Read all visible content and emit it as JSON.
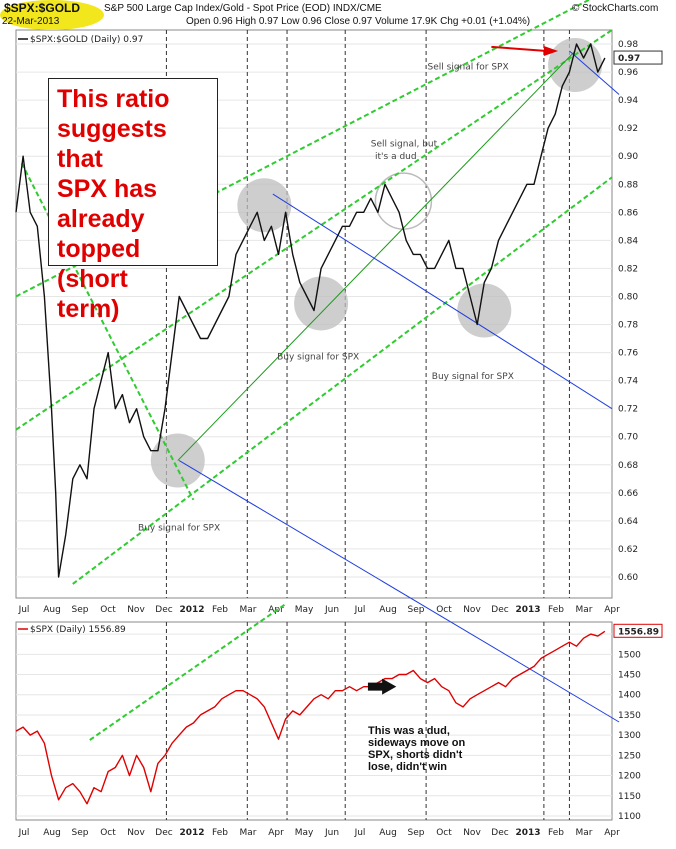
{
  "header": {
    "symbol": "$SPX:$GOLD",
    "date": "22-Mar-2013",
    "description": "S&P 500 Large Cap Index/Gold - Spot Price (EOD)  INDX/CME",
    "brand": "© StockCharts.com",
    "ohlc": "Open 0.96  High 0.97  Low 0.96  Close 0.97  Volume 17.9K  Chg +0.01 (+1.04%)"
  },
  "callout_lines": [
    "This ratio",
    "suggests that",
    "SPX has",
    "already",
    "topped (short",
    "term)"
  ],
  "annotations": {
    "sell1": "Sell signal for SPX",
    "sell_top": "Sell signal for SPX",
    "sell_dud_1": "Sell signal, but",
    "sell_dud_2": "it's a dud",
    "buy1": "Buy signal for SPX",
    "buy2": "Buy signal for SPX",
    "buy3": "Buy signal for SPX",
    "dud_note": "This was a dud, sideways move on SPX, shorts didn't lose, didn't win"
  },
  "colors": {
    "ratio_line": "#111111",
    "spx_line": "#e00000",
    "trend_blue": "#1f3fe0",
    "channel_green": "#2ecc2e",
    "signal_circle": "#bdbdbd",
    "arrow_red": "#e00000",
    "badge": "#f2e71d"
  },
  "chart_data": [
    {
      "type": "line",
      "title": "$SPX:$GOLD (Daily) 0.97",
      "series": [
        {
          "name": "$SPX:$GOLD (Daily) 0.97",
          "points": [
            [
              0,
              0.86
            ],
            [
              0.5,
              0.9
            ],
            [
              1,
              0.86
            ],
            [
              1.5,
              0.85
            ],
            [
              2,
              0.8
            ],
            [
              2.5,
              0.72
            ],
            [
              2.8,
              0.66
            ],
            [
              3,
              0.6
            ],
            [
              3.5,
              0.63
            ],
            [
              4,
              0.67
            ],
            [
              4.5,
              0.68
            ],
            [
              5,
              0.67
            ],
            [
              5.5,
              0.72
            ],
            [
              6,
              0.74
            ],
            [
              6.5,
              0.76
            ],
            [
              7,
              0.72
            ],
            [
              7.5,
              0.73
            ],
            [
              8,
              0.71
            ],
            [
              8.5,
              0.72
            ],
            [
              9,
              0.7
            ],
            [
              9.5,
              0.69
            ],
            [
              10,
              0.69
            ],
            [
              10.5,
              0.72
            ],
            [
              11,
              0.76
            ],
            [
              11.5,
              0.8
            ],
            [
              12,
              0.79
            ],
            [
              12.5,
              0.78
            ],
            [
              13,
              0.77
            ],
            [
              13.5,
              0.77
            ],
            [
              14,
              0.78
            ],
            [
              14.5,
              0.79
            ],
            [
              15,
              0.8
            ],
            [
              15.5,
              0.83
            ],
            [
              16,
              0.84
            ],
            [
              16.5,
              0.85
            ],
            [
              17,
              0.86
            ],
            [
              17.5,
              0.84
            ],
            [
              18,
              0.85
            ],
            [
              18.5,
              0.83
            ],
            [
              19,
              0.86
            ],
            [
              19.5,
              0.83
            ],
            [
              20,
              0.81
            ],
            [
              20.5,
              0.8
            ],
            [
              21,
              0.79
            ],
            [
              21.5,
              0.82
            ],
            [
              22,
              0.83
            ],
            [
              22.5,
              0.84
            ],
            [
              23,
              0.85
            ],
            [
              23.5,
              0.85
            ],
            [
              24,
              0.86
            ],
            [
              24.5,
              0.86
            ],
            [
              25,
              0.87
            ],
            [
              25.5,
              0.86
            ],
            [
              26,
              0.88
            ],
            [
              26.5,
              0.87
            ],
            [
              27,
              0.86
            ],
            [
              27.5,
              0.84
            ],
            [
              28,
              0.83
            ],
            [
              28.5,
              0.83
            ],
            [
              29,
              0.82
            ],
            [
              29.5,
              0.82
            ],
            [
              30,
              0.83
            ],
            [
              30.5,
              0.84
            ],
            [
              31,
              0.82
            ],
            [
              31.5,
              0.82
            ],
            [
              32,
              0.8
            ],
            [
              32.5,
              0.78
            ],
            [
              33,
              0.81
            ],
            [
              33.5,
              0.82
            ],
            [
              34,
              0.84
            ],
            [
              34.5,
              0.85
            ],
            [
              35,
              0.86
            ],
            [
              35.5,
              0.87
            ],
            [
              36,
              0.88
            ],
            [
              36.5,
              0.88
            ],
            [
              37,
              0.9
            ],
            [
              37.5,
              0.92
            ],
            [
              38,
              0.93
            ],
            [
              38.5,
              0.95
            ],
            [
              39,
              0.96
            ],
            [
              39.5,
              0.98
            ],
            [
              40,
              0.97
            ],
            [
              40.5,
              0.98
            ],
            [
              41,
              0.96
            ],
            [
              41.5,
              0.97
            ]
          ]
        }
      ],
      "xlim": [
        0,
        42
      ],
      "ylim": [
        0.585,
        0.99
      ],
      "y_ticks": [
        0.6,
        0.62,
        0.64,
        0.66,
        0.68,
        0.7,
        0.72,
        0.74,
        0.76,
        0.78,
        0.8,
        0.82,
        0.84,
        0.86,
        0.88,
        0.9,
        0.92,
        0.94,
        0.96,
        0.98
      ],
      "last_value_label": "0.97",
      "grid": true
    },
    {
      "type": "line",
      "title": "$SPX (Daily) 1556.89",
      "series": [
        {
          "name": "$SPX (Daily) 1556.89",
          "points": [
            [
              0,
              1310
            ],
            [
              0.5,
              1320
            ],
            [
              1,
              1300
            ],
            [
              1.5,
              1310
            ],
            [
              2,
              1280
            ],
            [
              2.5,
              1200
            ],
            [
              3,
              1140
            ],
            [
              3.5,
              1170
            ],
            [
              4,
              1180
            ],
            [
              4.5,
              1160
            ],
            [
              5,
              1130
            ],
            [
              5.5,
              1170
            ],
            [
              6,
              1160
            ],
            [
              6.5,
              1210
            ],
            [
              7,
              1220
            ],
            [
              7.5,
              1250
            ],
            [
              8,
              1200
            ],
            [
              8.5,
              1250
            ],
            [
              9,
              1220
            ],
            [
              9.5,
              1160
            ],
            [
              10,
              1230
            ],
            [
              10.5,
              1250
            ],
            [
              11,
              1280
            ],
            [
              11.5,
              1300
            ],
            [
              12,
              1320
            ],
            [
              12.5,
              1330
            ],
            [
              13,
              1350
            ],
            [
              13.5,
              1360
            ],
            [
              14,
              1370
            ],
            [
              14.5,
              1390
            ],
            [
              15,
              1400
            ],
            [
              15.5,
              1410
            ],
            [
              16,
              1410
            ],
            [
              16.5,
              1400
            ],
            [
              17,
              1390
            ],
            [
              17.5,
              1370
            ],
            [
              18,
              1330
            ],
            [
              18.5,
              1290
            ],
            [
              19,
              1340
            ],
            [
              19.5,
              1360
            ],
            [
              20,
              1350
            ],
            [
              20.5,
              1370
            ],
            [
              21,
              1390
            ],
            [
              21.5,
              1400
            ],
            [
              22,
              1390
            ],
            [
              22.5,
              1410
            ],
            [
              23,
              1410
            ],
            [
              23.5,
              1420
            ],
            [
              24,
              1410
            ],
            [
              24.5,
              1420
            ],
            [
              25,
              1420
            ],
            [
              25.5,
              1430
            ],
            [
              26,
              1440
            ],
            [
              26.5,
              1440
            ],
            [
              27,
              1450
            ],
            [
              27.5,
              1450
            ],
            [
              28,
              1460
            ],
            [
              28.5,
              1440
            ],
            [
              29,
              1430
            ],
            [
              29.5,
              1440
            ],
            [
              30,
              1420
            ],
            [
              30.5,
              1410
            ],
            [
              31,
              1380
            ],
            [
              31.5,
              1370
            ],
            [
              32,
              1390
            ],
            [
              32.5,
              1400
            ],
            [
              33,
              1410
            ],
            [
              33.5,
              1420
            ],
            [
              34,
              1430
            ],
            [
              34.5,
              1420
            ],
            [
              35,
              1440
            ],
            [
              35.5,
              1450
            ],
            [
              36,
              1460
            ],
            [
              36.5,
              1470
            ],
            [
              37,
              1490
            ],
            [
              37.5,
              1500
            ],
            [
              38,
              1510
            ],
            [
              38.5,
              1520
            ],
            [
              39,
              1530
            ],
            [
              39.5,
              1520
            ],
            [
              40,
              1540
            ],
            [
              40.5,
              1550
            ],
            [
              41,
              1545
            ],
            [
              41.5,
              1557
            ]
          ]
        }
      ],
      "xlim": [
        0,
        42
      ],
      "ylim": [
        1090,
        1580
      ],
      "y_ticks": [
        1100,
        1150,
        1200,
        1250,
        1300,
        1350,
        1400,
        1450,
        1500,
        1550
      ],
      "last_value_label": "1556.89",
      "grid": true
    }
  ],
  "x_axis": {
    "labels": [
      "Jul",
      "Aug",
      "Sep",
      "Oct",
      "Nov",
      "Dec",
      "2012",
      "Feb",
      "Mar",
      "Apr",
      "May",
      "Jun",
      "Jul",
      "Aug",
      "Sep",
      "Oct",
      "Nov",
      "Dec",
      "2013",
      "Feb",
      "Mar",
      "Apr"
    ],
    "bold": [
      "2012",
      "2013"
    ]
  }
}
